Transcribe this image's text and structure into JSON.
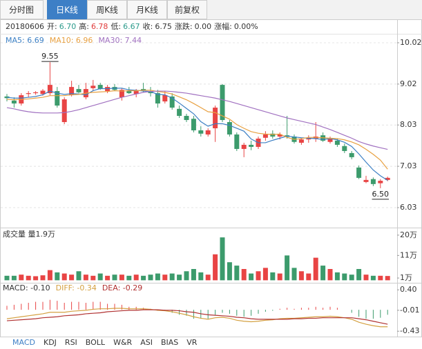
{
  "tabs": [
    "分时图",
    "日K线",
    "周K线",
    "月K线",
    "前复权"
  ],
  "info": {
    "date": "20180606",
    "fields": [
      {
        "label": "开:",
        "value": "6.70",
        "color": "#2a9a8a"
      },
      {
        "label": "高:",
        "value": "6.78",
        "color": "#e03a3a"
      },
      {
        "label": "低:",
        "value": "6.67",
        "color": "#2a9a8a"
      },
      {
        "label": "收:",
        "value": "6.75",
        "color": "#333333"
      },
      {
        "label": "涨跌:",
        "value": "0.00",
        "color": "#333333"
      },
      {
        "label": "涨幅:",
        "value": "0.00%",
        "color": "#333333"
      }
    ]
  },
  "indicator_tabs": [
    "MACD",
    "KDJ",
    "RSI",
    "BOLL",
    "W&R",
    "ASI",
    "BIAS",
    "VR"
  ],
  "chart_data": [
    {
      "type": "candlestick",
      "up_color": "#e84444",
      "down_color": "#3c9b6c",
      "grid": true,
      "ylim": [
        5.88,
        10.22
      ],
      "yticks": [
        10.02,
        9.02,
        8.03,
        7.03,
        6.03
      ],
      "open": [
        8.72,
        8.62,
        8.55,
        8.78,
        8.8,
        8.78,
        8.8,
        8.85,
        8.1,
        8.75,
        8.9,
        8.7,
        8.92,
        9.0,
        8.85,
        8.95,
        8.7,
        8.85,
        8.78,
        8.9,
        8.85,
        8.8,
        8.6,
        8.72,
        8.42,
        8.25,
        8.18,
        7.9,
        7.8,
        7.95,
        9.0,
        8.1,
        7.8,
        7.45,
        7.55,
        7.5,
        7.72,
        7.82,
        7.75,
        7.78,
        7.75,
        7.6,
        7.68,
        7.7,
        7.78,
        7.62,
        7.65,
        7.52,
        7.35,
        7.0,
        6.65,
        6.72,
        6.62,
        6.7
      ],
      "high": [
        8.78,
        8.7,
        8.8,
        8.85,
        8.85,
        8.9,
        9.55,
        8.95,
        8.7,
        9.1,
        9.0,
        9.05,
        9.12,
        9.05,
        9.0,
        9.02,
        8.92,
        8.95,
        8.9,
        9.05,
        8.95,
        8.88,
        8.85,
        8.8,
        8.5,
        8.3,
        8.25,
        8.0,
        7.95,
        8.5,
        9.02,
        8.15,
        7.85,
        7.6,
        7.65,
        7.75,
        7.88,
        7.9,
        7.85,
        8.25,
        7.8,
        7.72,
        7.78,
        8.1,
        7.85,
        7.75,
        7.7,
        7.58,
        7.4,
        7.05,
        6.8,
        6.76,
        6.72,
        6.78
      ],
      "low": [
        8.6,
        8.45,
        8.5,
        8.7,
        8.76,
        8.74,
        8.75,
        8.45,
        8.05,
        8.72,
        8.8,
        8.65,
        8.85,
        8.88,
        8.8,
        8.85,
        8.62,
        8.78,
        8.7,
        8.82,
        8.72,
        8.45,
        8.55,
        8.4,
        8.2,
        8.1,
        7.85,
        7.75,
        7.75,
        7.62,
        8.1,
        7.75,
        7.4,
        7.25,
        7.42,
        7.45,
        7.65,
        7.7,
        7.68,
        7.7,
        7.58,
        7.55,
        7.6,
        7.62,
        7.62,
        7.58,
        7.5,
        7.35,
        7.2,
        6.72,
        6.62,
        6.55,
        6.5,
        6.67
      ],
      "close": [
        8.68,
        8.55,
        8.75,
        8.8,
        8.82,
        8.86,
        9.0,
        8.5,
        8.65,
        8.95,
        8.82,
        8.9,
        8.98,
        8.9,
        8.95,
        8.88,
        8.88,
        8.8,
        8.85,
        8.86,
        8.8,
        8.55,
        8.75,
        8.45,
        8.25,
        8.15,
        7.9,
        7.82,
        7.9,
        8.45,
        8.15,
        7.8,
        7.45,
        7.55,
        7.5,
        7.7,
        7.8,
        7.75,
        7.8,
        7.74,
        7.62,
        7.68,
        7.7,
        7.75,
        7.65,
        7.7,
        7.55,
        7.4,
        7.25,
        6.75,
        6.7,
        6.6,
        6.68,
        6.75
      ],
      "series": [
        {
          "name": "MA5: 6.69",
          "color": "#3b7fc4",
          "values": [
            8.7,
            8.68,
            8.68,
            8.7,
            8.72,
            8.76,
            8.85,
            8.8,
            8.77,
            8.79,
            8.78,
            8.76,
            8.86,
            8.91,
            8.91,
            8.92,
            8.92,
            8.88,
            8.87,
            8.85,
            8.84,
            8.77,
            8.76,
            8.68,
            8.56,
            8.43,
            8.3,
            8.11,
            8.0,
            8.06,
            8.06,
            8.02,
            7.95,
            7.88,
            7.69,
            7.6,
            7.6,
            7.66,
            7.71,
            7.76,
            7.74,
            7.72,
            7.71,
            7.7,
            7.68,
            7.7,
            7.67,
            7.61,
            7.51,
            7.33,
            7.13,
            6.94,
            6.8,
            6.69
          ]
        },
        {
          "name": "MA10: 6.96",
          "color": "#e8a040",
          "values": [
            8.65,
            8.64,
            8.65,
            8.66,
            8.68,
            8.7,
            8.74,
            8.74,
            8.74,
            8.76,
            8.77,
            8.8,
            8.82,
            8.83,
            8.84,
            8.86,
            8.85,
            8.86,
            8.86,
            8.87,
            8.87,
            8.84,
            8.82,
            8.78,
            8.71,
            8.64,
            8.55,
            8.45,
            8.35,
            8.33,
            8.25,
            8.17,
            8.04,
            7.95,
            7.87,
            7.83,
            7.81,
            7.8,
            7.81,
            7.73,
            7.68,
            7.7,
            7.73,
            7.73,
            7.72,
            7.71,
            7.7,
            7.67,
            7.62,
            7.55,
            7.44,
            7.32,
            7.18,
            6.96
          ]
        },
        {
          "name": "MA30: 7.44",
          "color": "#a070c0",
          "values": [
            8.45,
            8.42,
            8.38,
            8.35,
            8.33,
            8.32,
            8.32,
            8.32,
            8.33,
            8.36,
            8.4,
            8.45,
            8.5,
            8.55,
            8.6,
            8.65,
            8.7,
            8.74,
            8.78,
            8.82,
            8.84,
            8.85,
            8.85,
            8.84,
            8.82,
            8.8,
            8.77,
            8.74,
            8.71,
            8.68,
            8.64,
            8.6,
            8.55,
            8.5,
            8.45,
            8.4,
            8.35,
            8.3,
            8.25,
            8.2,
            8.16,
            8.12,
            8.08,
            8.04,
            7.98,
            7.92,
            7.85,
            7.78,
            7.71,
            7.63,
            7.57,
            7.52,
            7.48,
            7.44
          ]
        }
      ],
      "annotations": [
        {
          "label": "9.55",
          "value": 9.55
        },
        {
          "label": "6.50",
          "value": 6.5
        }
      ]
    },
    {
      "type": "bar",
      "title": "成交量 量1.9万",
      "up_color": "#e84444",
      "down_color": "#3c9b6c",
      "ylim": [
        -0.5,
        21.5
      ],
      "yticks": [
        {
          "value": 20,
          "label": "20万"
        },
        {
          "value": 11,
          "label": "11万"
        },
        {
          "value": 1,
          "label": "1万"
        }
      ],
      "values": [
        2.0,
        2.0,
        2.5,
        2.0,
        1.8,
        2.2,
        4.5,
        3.5,
        3.0,
        2.5,
        4.0,
        2.5,
        2.0,
        3.0,
        2.0,
        2.5,
        2.5,
        2.0,
        2.5,
        2.0,
        2.5,
        3.0,
        2.5,
        3.0,
        2.5,
        4.0,
        5.0,
        3.5,
        2.5,
        11.5,
        19.0,
        8.0,
        6.5,
        5.0,
        3.0,
        4.0,
        5.5,
        3.5,
        3.0,
        11.0,
        5.5,
        4.0,
        3.0,
        10.0,
        6.5,
        5.0,
        3.5,
        3.0,
        2.5,
        5.0,
        2.5,
        2.0,
        2.0,
        1.9
      ]
    },
    {
      "type": "macd",
      "up_color": "#e84444",
      "down_color": "#3c9b6c",
      "ylim": [
        -0.51,
        0.5
      ],
      "yticks": [
        {
          "value": 0.4,
          "label": "0.40"
        },
        -0.01,
        -0.43
      ],
      "bars": {
        "name": "MACD: -0.10",
        "color": "#333333",
        "values": [
          0.08,
          0.1,
          0.12,
          0.14,
          0.16,
          0.16,
          0.2,
          0.18,
          0.14,
          0.16,
          0.16,
          0.14,
          0.16,
          0.16,
          0.12,
          0.12,
          0.1,
          0.06,
          0.06,
          0.04,
          0.02,
          -0.02,
          -0.02,
          -0.06,
          -0.1,
          -0.12,
          -0.18,
          -0.18,
          -0.18,
          -0.1,
          -0.06,
          -0.08,
          -0.12,
          -0.14,
          -0.12,
          -0.08,
          -0.04,
          -0.02,
          0.02,
          0.04,
          0.02,
          0.04,
          0.04,
          0.06,
          0.04,
          0.06,
          0.04,
          0.0,
          -0.06,
          -0.14,
          -0.18,
          -0.18,
          -0.16,
          -0.1
        ]
      },
      "series": [
        {
          "name": "DIFF: -0.34",
          "color": "#d4a040",
          "values": [
            -0.18,
            -0.16,
            -0.14,
            -0.12,
            -0.1,
            -0.08,
            -0.05,
            -0.05,
            -0.05,
            -0.03,
            -0.02,
            -0.01,
            0.01,
            0.02,
            0.02,
            0.03,
            0.03,
            0.02,
            0.02,
            0.02,
            0.01,
            -0.01,
            -0.02,
            -0.04,
            -0.07,
            -0.1,
            -0.14,
            -0.17,
            -0.19,
            -0.16,
            -0.15,
            -0.17,
            -0.21,
            -0.23,
            -0.24,
            -0.23,
            -0.21,
            -0.2,
            -0.18,
            -0.17,
            -0.17,
            -0.16,
            -0.15,
            -0.14,
            -0.14,
            -0.13,
            -0.14,
            -0.16,
            -0.19,
            -0.25,
            -0.29,
            -0.32,
            -0.34,
            -0.34
          ]
        },
        {
          "name": "DEA: -0.29",
          "color": "#b03030",
          "values": [
            -0.22,
            -0.21,
            -0.2,
            -0.19,
            -0.18,
            -0.16,
            -0.15,
            -0.14,
            -0.12,
            -0.11,
            -0.1,
            -0.08,
            -0.07,
            -0.06,
            -0.04,
            -0.03,
            -0.02,
            -0.01,
            -0.01,
            0.0,
            0.0,
            0.0,
            -0.01,
            -0.01,
            -0.02,
            -0.04,
            -0.05,
            -0.08,
            -0.1,
            -0.11,
            -0.12,
            -0.13,
            -0.15,
            -0.16,
            -0.18,
            -0.19,
            -0.19,
            -0.19,
            -0.19,
            -0.19,
            -0.18,
            -0.18,
            -0.17,
            -0.17,
            -0.16,
            -0.16,
            -0.16,
            -0.16,
            -0.16,
            -0.18,
            -0.2,
            -0.23,
            -0.26,
            -0.29
          ]
        }
      ]
    }
  ]
}
